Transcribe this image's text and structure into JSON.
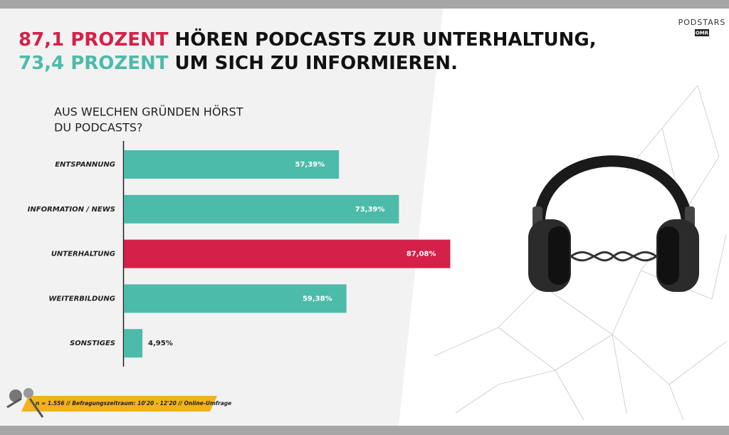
{
  "header": {
    "line1_highlight": "87,1 PROZENT",
    "line1_rest": " HÖREN PODCASTS ZUR UNTERHALTUNG,",
    "line2_highlight": "73,4 PROZENT",
    "line2_rest": " UM SICH ZU INFORMIEREN."
  },
  "logo": {
    "name": "PODSTARS",
    "badge": "OMR"
  },
  "chart_data": {
    "type": "bar",
    "orientation": "horizontal",
    "title": [
      "AUS WELCHEN GRÜNDEN HÖRST",
      "DU PODCASTS?"
    ],
    "categories": [
      "ENTSPANNUNG",
      "INFORMATION / NEWS",
      "UNTERHALTUNG",
      "WEITERBILDUNG",
      "SONSTIGES"
    ],
    "values": [
      57.39,
      73.39,
      87.08,
      59.38,
      4.95
    ],
    "value_labels": [
      "57,39%",
      "73,39%",
      "87,08%",
      "59,38%",
      "4,95%"
    ],
    "colors": [
      "#4dbba9",
      "#4dbba9",
      "#d42149",
      "#4dbba9",
      "#4dbba9"
    ]
  },
  "footnote": "n = 1.556 // Befragungszeitraum: 10'20 - 12'20 // Online-Umfrage"
}
